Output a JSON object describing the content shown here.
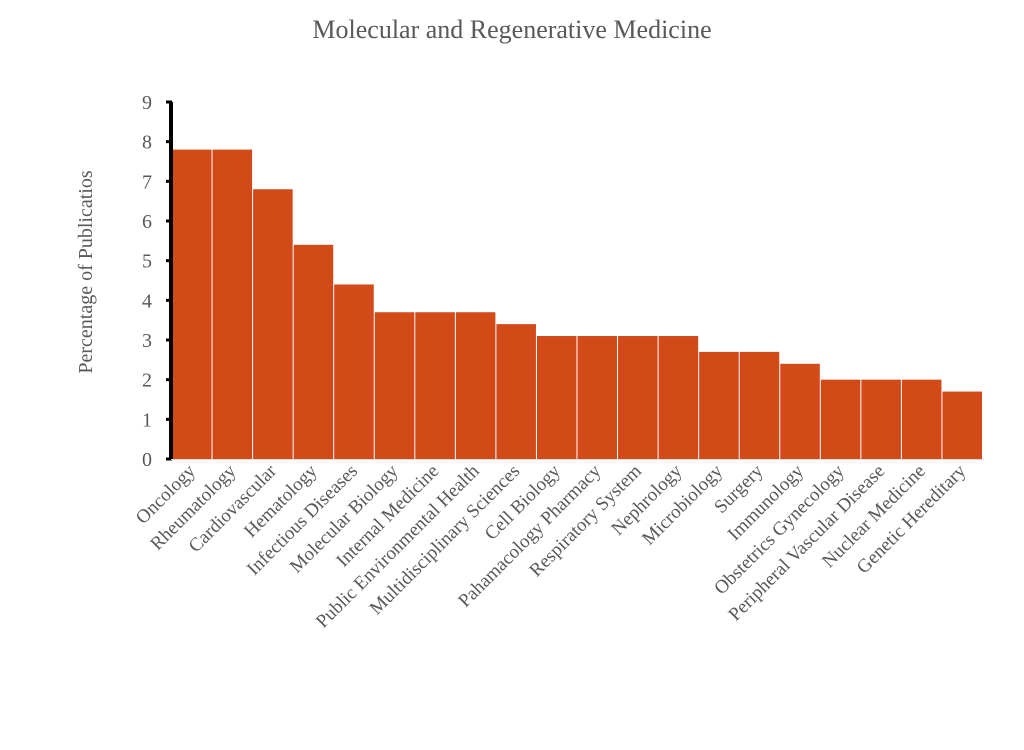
{
  "chart_data": {
    "type": "bar",
    "title": "Molecular and Regenerative Medicine",
    "xlabel": "",
    "ylabel": "Percentage of Publicatios",
    "ylim": [
      0,
      9
    ],
    "yticks": [
      0,
      1,
      2,
      3,
      4,
      5,
      6,
      7,
      8,
      9
    ],
    "grid": false,
    "bar_color": "#D14A18",
    "categories": [
      "Oncology",
      "Rheumatology",
      "Cardiovascular",
      "Hematology",
      "Infectious Diseases",
      "Molecular Biology",
      "Internal Medicine",
      "Public Environmental Health",
      "Multidisciplinary Sciences",
      "Cell Biology",
      "Pahamacology Pharmacy",
      "Respiratory System",
      "Nephrology",
      "Microbiology",
      "Surgery",
      "Immunology",
      "Obstetrics Gynecology",
      "Peripheral Vascular Disease",
      "Nuclear Medicine",
      "Genetic Hereditary"
    ],
    "values": [
      7.8,
      7.8,
      6.8,
      5.4,
      4.4,
      3.7,
      3.7,
      3.7,
      3.4,
      3.1,
      3.1,
      3.1,
      3.1,
      2.7,
      2.7,
      2.4,
      2.0,
      2.0,
      2.0,
      1.7
    ]
  }
}
